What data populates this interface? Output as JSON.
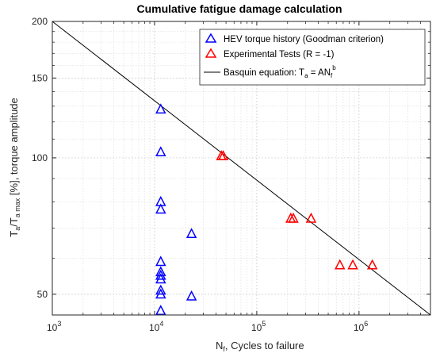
{
  "chart_data": {
    "type": "scatter",
    "title": "Cumulative fatigue damage calculation",
    "xlabel": {
      "main": "N",
      "sub": "f",
      "rest": ", Cycles to failure"
    },
    "ylabel": {
      "t1": "T",
      "s1": "a",
      "t2": "/T",
      "s2": "a max",
      "t3": " [%], torque amplitude"
    },
    "xscale": "log",
    "yscale": "log",
    "xlim": [
      1000,
      5000000
    ],
    "ylim": [
      45,
      200
    ],
    "xticks": [
      {
        "value": 1000,
        "base": "10",
        "exp": "3"
      },
      {
        "value": 10000,
        "base": "10",
        "exp": "4"
      },
      {
        "value": 100000,
        "base": "10",
        "exp": "5"
      },
      {
        "value": 1000000,
        "base": "10",
        "exp": "6"
      }
    ],
    "yticks": [
      {
        "value": 50,
        "label": "50"
      },
      {
        "value": 100,
        "label": "100"
      },
      {
        "value": 150,
        "label": "150"
      },
      {
        "value": 200,
        "label": "200"
      }
    ],
    "grid": true,
    "legend_position": "top-right",
    "series": [
      {
        "name": "HEV torque history (Goodman criterion)",
        "marker": "triangle",
        "color": "#0000ff",
        "points": [
          {
            "x": 11500,
            "y": 128
          },
          {
            "x": 11500,
            "y": 103
          },
          {
            "x": 11500,
            "y": 80
          },
          {
            "x": 11500,
            "y": 77
          },
          {
            "x": 11500,
            "y": 59
          },
          {
            "x": 11500,
            "y": 56
          },
          {
            "x": 11500,
            "y": 55
          },
          {
            "x": 11500,
            "y": 54
          },
          {
            "x": 11500,
            "y": 51
          },
          {
            "x": 11500,
            "y": 50
          },
          {
            "x": 11500,
            "y": 46
          },
          {
            "x": 23000,
            "y": 68
          },
          {
            "x": 23000,
            "y": 49.5
          }
        ]
      },
      {
        "name": "Experimental Tests (R = -1)",
        "marker": "triangle",
        "color": "#ff0000",
        "points": [
          {
            "x": 45000,
            "y": 101
          },
          {
            "x": 47000,
            "y": 101
          },
          {
            "x": 215000,
            "y": 73.5
          },
          {
            "x": 228000,
            "y": 73.5
          },
          {
            "x": 340000,
            "y": 73.5
          },
          {
            "x": 650000,
            "y": 58
          },
          {
            "x": 870000,
            "y": 58
          },
          {
            "x": 1350000,
            "y": 58
          }
        ]
      },
      {
        "name": "Basquin equation: T",
        "legend_sub": "a",
        "legend_tail": " = AN",
        "legend_tail_sub": "f",
        "legend_tail_sup": "b",
        "type": "line",
        "color": "#000000",
        "points": [
          {
            "x": 1000,
            "y": 200
          },
          {
            "x": 5000000,
            "y": 45
          }
        ]
      }
    ]
  }
}
